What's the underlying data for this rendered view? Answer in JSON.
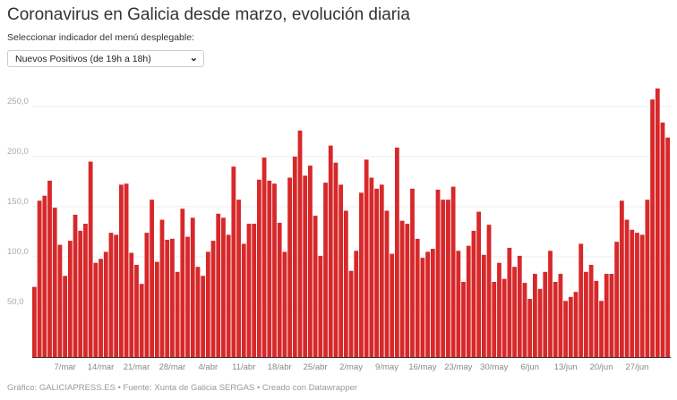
{
  "title": "Coronavirus en Galicia desde marzo, evolución diaria",
  "subtitle": "Seleccionar indicador del menú desplegable:",
  "dropdown": {
    "selected": "Nuevos Positivos (de 19h a 18h)",
    "icon": "chevron-down-icon"
  },
  "footer": "Gráfico: GALICIAPRESS.ES • Fuente: Xunta de Galicia SERGAS • Creado con Datawrapper",
  "colors": {
    "bar": "#d7282a",
    "axis": "#333333",
    "grid": "#eeeeee"
  },
  "chart_data": {
    "type": "bar",
    "title": "",
    "xlabel": "",
    "ylabel": "",
    "ylim": [
      0,
      280
    ],
    "grid": true,
    "yticks": [
      {
        "value": 50,
        "label": "50,0"
      },
      {
        "value": 100,
        "label": "100,0"
      },
      {
        "value": 150,
        "label": "150,0"
      },
      {
        "value": 200,
        "label": "200,0"
      },
      {
        "value": 250,
        "label": "250,0"
      }
    ],
    "xticks": [
      "7/mar",
      "14/mar",
      "21/mar",
      "28/mar",
      "4/abr",
      "11/abr",
      "18/abr",
      "25/abr",
      "2/may",
      "9/may",
      "16/may",
      "23/may",
      "30/may",
      "6/jun",
      "13/jun",
      "20/jun",
      "27/jun"
    ],
    "categories": [
      "1/mar",
      "2/mar",
      "3/mar",
      "4/mar",
      "5/mar",
      "6/mar",
      "7/mar",
      "8/mar",
      "9/mar",
      "10/mar",
      "11/mar",
      "12/mar",
      "13/mar",
      "14/mar",
      "15/mar",
      "16/mar",
      "17/mar",
      "18/mar",
      "19/mar",
      "20/mar",
      "21/mar",
      "22/mar",
      "23/mar",
      "24/mar",
      "25/mar",
      "26/mar",
      "27/mar",
      "28/mar",
      "29/mar",
      "30/mar",
      "31/mar",
      "1/abr",
      "2/abr",
      "3/abr",
      "4/abr",
      "5/abr",
      "6/abr",
      "7/abr",
      "8/abr",
      "9/abr",
      "10/abr",
      "11/abr",
      "12/abr",
      "13/abr",
      "14/abr",
      "15/abr",
      "16/abr",
      "17/abr",
      "18/abr",
      "19/abr",
      "20/abr",
      "21/abr",
      "22/abr",
      "23/abr",
      "24/abr",
      "25/abr",
      "26/abr",
      "27/abr",
      "28/abr",
      "29/abr",
      "30/abr",
      "1/may",
      "2/may",
      "3/may",
      "4/may",
      "5/may",
      "6/may",
      "7/may",
      "8/may",
      "9/may",
      "10/may",
      "11/may",
      "12/may",
      "13/may",
      "14/may",
      "15/may",
      "16/may",
      "17/may",
      "18/may",
      "19/may",
      "20/may",
      "21/may",
      "22/may",
      "23/may",
      "24/may",
      "25/may",
      "26/may",
      "27/may",
      "28/may",
      "29/may",
      "30/may",
      "31/may",
      "1/jun",
      "2/jun",
      "3/jun",
      "4/jun",
      "5/jun",
      "6/jun",
      "7/jun",
      "8/jun",
      "9/jun",
      "10/jun",
      "11/jun",
      "12/jun",
      "13/jun",
      "14/jun",
      "15/jun",
      "16/jun",
      "17/jun",
      "18/jun",
      "19/jun",
      "20/jun",
      "21/jun",
      "22/jun",
      "23/jun",
      "24/jun",
      "25/jun",
      "26/jun",
      "27/jun",
      "28/jun",
      "29/jun",
      "30/jun",
      "1/jul",
      "2/jul",
      "3/jul"
    ],
    "values": [
      70,
      156,
      161,
      176,
      149,
      112,
      81,
      116,
      142,
      126,
      133,
      195,
      94,
      98,
      105,
      124,
      122,
      172,
      173,
      104,
      92,
      73,
      124,
      157,
      95,
      137,
      117,
      118,
      85,
      148,
      120,
      139,
      90,
      81,
      105,
      116,
      143,
      139,
      122,
      190,
      157,
      113,
      133,
      133,
      177,
      199,
      176,
      173,
      134,
      105,
      179,
      200,
      226,
      181,
      191,
      141,
      101,
      174,
      211,
      194,
      172,
      146,
      86,
      106,
      164,
      197,
      179,
      168,
      172,
      146,
      103,
      209,
      136,
      133,
      168,
      118,
      99,
      105,
      108,
      167,
      157,
      157,
      170,
      106,
      75,
      111,
      126,
      145,
      102,
      132,
      75,
      94,
      78,
      109,
      90,
      101,
      74,
      58,
      83,
      68,
      85,
      106,
      75,
      83,
      56,
      60,
      65,
      113,
      85,
      92,
      76,
      56,
      83,
      83,
      115,
      156,
      137,
      127,
      124,
      122,
      157,
      257,
      268,
      234,
      219
    ]
  }
}
